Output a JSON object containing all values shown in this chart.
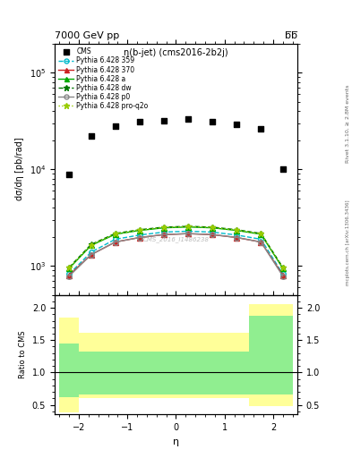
{
  "title_top": "7000 GeV pp",
  "title_top_right": "b̅b̅",
  "plot_title": "η(b-jet) (cms2016-2b2j)",
  "xlabel": "η",
  "ylabel_main": "dσ/dη [pb/rad]",
  "ylabel_ratio": "Ratio to CMS",
  "right_label_top": "Rivet 3.1.10, ≥ 2.8M events",
  "right_label_bottom": "mcplots.cern.ch [arXiv:1306.3436]",
  "watermark": "CMS_2016_I1486238",
  "eta_bins": [
    -2.4,
    -2.0,
    -1.5,
    -1.0,
    -0.5,
    0.0,
    0.5,
    1.0,
    1.5,
    2.0,
    2.4
  ],
  "eta_centers": [
    -2.2,
    -1.75,
    -1.25,
    -0.75,
    -0.25,
    0.25,
    0.75,
    1.25,
    1.75,
    2.2
  ],
  "cms_data": [
    8800,
    22000,
    28000,
    31000,
    32000,
    33000,
    31000,
    29000,
    26000,
    10000
  ],
  "py359_data": [
    820,
    1380,
    1880,
    2080,
    2230,
    2280,
    2230,
    2080,
    1880,
    820
  ],
  "py370_data": [
    800,
    1300,
    1760,
    1960,
    2100,
    2150,
    2100,
    1960,
    1760,
    800
  ],
  "pya_data": [
    940,
    1620,
    2120,
    2320,
    2470,
    2520,
    2470,
    2320,
    2120,
    940
  ],
  "pydw_data": [
    960,
    1660,
    2160,
    2360,
    2510,
    2560,
    2510,
    2360,
    2160,
    960
  ],
  "pyp0_data": [
    780,
    1300,
    1760,
    1960,
    2100,
    2150,
    2100,
    1960,
    1760,
    780
  ],
  "pyproq2o_data": [
    950,
    1640,
    2140,
    2340,
    2490,
    2540,
    2490,
    2340,
    2140,
    950
  ],
  "ratio_green_upper": [
    1.45,
    1.32,
    1.32,
    1.32,
    1.32,
    1.32,
    1.32,
    1.32,
    1.88,
    1.88
  ],
  "ratio_green_lower": [
    0.62,
    0.66,
    0.66,
    0.66,
    0.66,
    0.66,
    0.66,
    0.66,
    0.66,
    0.66
  ],
  "ratio_yellow_upper": [
    1.85,
    1.62,
    1.62,
    1.62,
    1.62,
    1.62,
    1.62,
    1.62,
    2.05,
    2.05
  ],
  "ratio_yellow_lower": [
    0.38,
    0.6,
    0.6,
    0.6,
    0.6,
    0.6,
    0.6,
    0.6,
    0.48,
    0.48
  ],
  "xlim": [
    -2.5,
    2.5
  ],
  "ylim_main": [
    500,
    200000
  ],
  "ylim_ratio": [
    0.35,
    2.2
  ],
  "color_359": "#00bbcc",
  "color_370": "#cc2222",
  "color_a": "#00aa00",
  "color_dw": "#007700",
  "color_p0": "#888888",
  "color_proq2o": "#99cc00",
  "color_green_band": "#90ee90",
  "color_yellow_band": "#ffff99"
}
